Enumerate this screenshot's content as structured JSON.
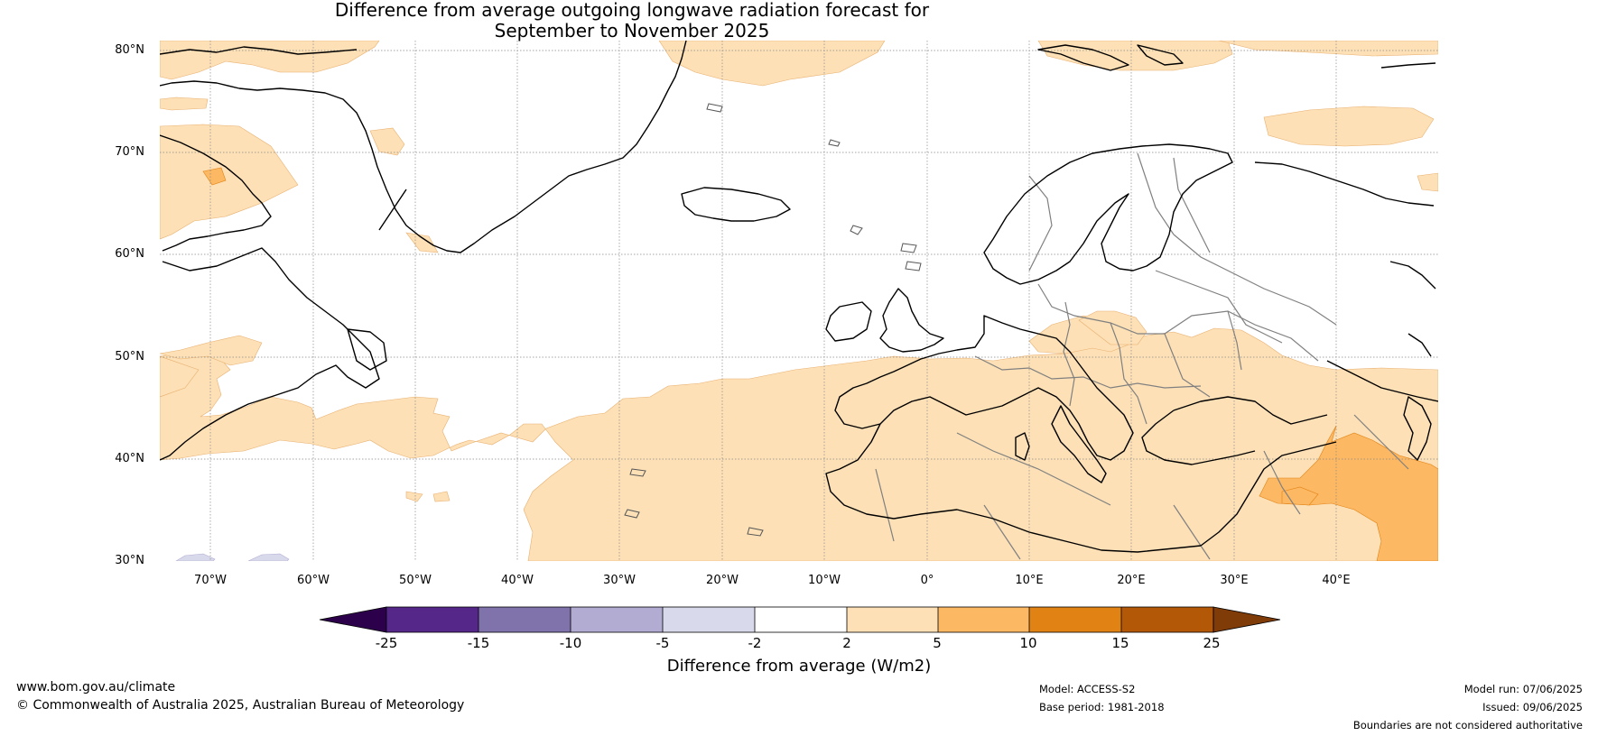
{
  "title_line1": "Difference from average outgoing longwave radiation forecast for",
  "title_line2": "September to November 2025",
  "lat_labels": [
    "80°N",
    "70°N",
    "60°N",
    "50°N",
    "40°N",
    "30°N"
  ],
  "lon_labels": [
    "70°W",
    "60°W",
    "50°W",
    "40°W",
    "30°W",
    "20°W",
    "10°W",
    "0°",
    "10°E",
    "20°E",
    "30°E",
    "40°E"
  ],
  "map": {
    "lon_range": [
      -75,
      50
    ],
    "lat_range": [
      30,
      81
    ],
    "grid_lons": [
      -70,
      -60,
      -50,
      -40,
      -30,
      -20,
      -10,
      0,
      10,
      20,
      30,
      40
    ],
    "grid_lats": [
      80,
      70,
      60,
      50,
      40,
      30
    ],
    "colors": {
      "anom_2_5": "#fde0b6",
      "anom_5_10": "#fdb863",
      "anom_m2_m5": "#d8daeb",
      "coast": "#000000",
      "border": "#808080"
    }
  },
  "colorbar": {
    "labels": [
      "-25",
      "-15",
      "-10",
      "-5",
      "-2",
      "2",
      "5",
      "10",
      "15",
      "25"
    ],
    "colors": [
      "#2d004b",
      "#542788",
      "#8073ac",
      "#b2abd2",
      "#d8daeb",
      "#ffffff",
      "#fee0b6",
      "#fdb863",
      "#e08214",
      "#b35806",
      "#7f3b08"
    ],
    "title": "Difference from average (W/m2)"
  },
  "footer": {
    "website": "www.bom.gov.au/climate",
    "copyright": "© Commonwealth of Australia 2025, Australian Bureau of Meteorology",
    "model": "Model: ACCESS-S2",
    "base_period": "Base period: 1981-2018",
    "model_run": "Model run: 07/06/2025",
    "issued": "Issued: 09/06/2025",
    "disclaimer": "Boundaries are not considered authoritative"
  }
}
